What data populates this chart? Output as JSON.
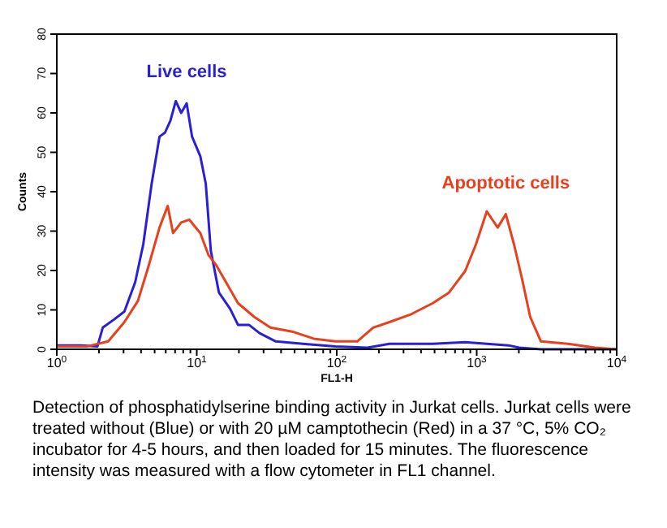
{
  "chart_data": {
    "type": "line",
    "xlabel": "FL1-H",
    "ylabel": "Counts",
    "log": "x",
    "xlim": [
      1,
      10000
    ],
    "ylim": [
      0,
      80
    ],
    "xticks": [
      {
        "value": 1,
        "label": "10$^{0}$"
      },
      {
        "value": 2,
        "label": null
      },
      {
        "value": 3,
        "label": null
      },
      {
        "value": 4,
        "label": null
      },
      {
        "value": 5,
        "label": null
      },
      {
        "value": 6,
        "label": null
      },
      {
        "value": 7,
        "label": null
      },
      {
        "value": 8,
        "label": null
      },
      {
        "value": 9,
        "label": null
      },
      {
        "value": 10,
        "label": "10$^{1}$"
      },
      {
        "value": 20,
        "label": null
      },
      {
        "value": 30,
        "label": null
      },
      {
        "value": 40,
        "label": null
      },
      {
        "value": 50,
        "label": null
      },
      {
        "value": 60,
        "label": null
      },
      {
        "value": 70,
        "label": null
      },
      {
        "value": 80,
        "label": null
      },
      {
        "value": 90,
        "label": null
      },
      {
        "value": 100,
        "label": "10$^{2}$"
      },
      {
        "value": 200,
        "label": null
      },
      {
        "value": 300,
        "label": null
      },
      {
        "value": 400,
        "label": null
      },
      {
        "value": 500,
        "label": null
      },
      {
        "value": 600,
        "label": null
      },
      {
        "value": 700,
        "label": null
      },
      {
        "value": 800,
        "label": null
      },
      {
        "value": 900,
        "label": null
      },
      {
        "value": 1000,
        "label": "10$^{3}$"
      },
      {
        "value": 2000,
        "label": null
      },
      {
        "value": 3000,
        "label": null
      },
      {
        "value": 4000,
        "label": null
      },
      {
        "value": 5000,
        "label": null
      },
      {
        "value": 6000,
        "label": null
      },
      {
        "value": 7000,
        "label": null
      },
      {
        "value": 8000,
        "label": null
      },
      {
        "value": 9000,
        "label": null
      },
      {
        "value": 10000,
        "label": "10$^{4}$"
      }
    ],
    "yticks": [
      0,
      10,
      20,
      30,
      40,
      50,
      60,
      70,
      80
    ],
    "grid": false,
    "marker": "none",
    "series": [
      {
        "name": "Live cells",
        "color": "#2b1fd6",
        "x": [
          1,
          1.49,
          1.95,
          2.13,
          2.55,
          3.04,
          3.63,
          4.15,
          4.75,
          5.42,
          5.93,
          6.48,
          7.08,
          7.74,
          8.47,
          9.25,
          10.6,
          11.6,
          12.6,
          14.4,
          17.3,
          19.7,
          23.6,
          28.1,
          36.7,
          57.3,
          97.8,
          166,
          238,
          485,
          828,
          1687,
          2014,
          2876,
          10000
        ],
        "values": [
          1,
          1,
          0.7,
          5.5,
          7.5,
          9.6,
          17,
          26.7,
          41.8,
          54,
          55,
          58,
          63,
          60,
          62.4,
          54,
          49,
          42,
          25,
          14.4,
          10.3,
          6.2,
          6.2,
          4.1,
          2,
          1.4,
          0.7,
          0.4,
          1.4,
          1.4,
          1.8,
          1,
          0.4,
          0,
          0
        ]
      },
      {
        "name": "Apoptotic cells",
        "color": "#e8401c",
        "x": [
          1,
          1.63,
          2.33,
          3.04,
          3.8,
          4.54,
          5.42,
          6.2,
          6.77,
          7.74,
          8.85,
          10.6,
          12.1,
          13.8,
          16.5,
          19.7,
          25.8,
          33.6,
          48,
          68.5,
          97.8,
          140,
          182,
          238,
          340,
          485,
          634,
          828,
          989,
          1180,
          1412,
          1614,
          1845,
          2110,
          2411,
          2876,
          4487,
          7000,
          10000
        ],
        "values": [
          0.7,
          0.7,
          2,
          6.9,
          12.3,
          21.3,
          30.9,
          36.4,
          29.5,
          32.2,
          32.9,
          29.5,
          24,
          21.3,
          16.5,
          11.7,
          8.2,
          5.5,
          4.5,
          2.7,
          2,
          2,
          5.5,
          6.9,
          8.9,
          11.7,
          14.4,
          19.9,
          26.7,
          35,
          30.9,
          34.3,
          26.7,
          17.8,
          8.2,
          2,
          1.4,
          0.4,
          0
        ]
      }
    ],
    "annotations": [
      "Detection of phosphatidylserine binding activity in Jurkat cells. Jurkat cells were treated without (Blue) or with 20 µM camptothecin (Red) in a 37 °C, 5% CO₂ incubator for 4-5 hours, and then loaded for 15 minutes. The fluorescence intensity was measured with a flow cytometer in FL1 channel."
    ]
  }
}
